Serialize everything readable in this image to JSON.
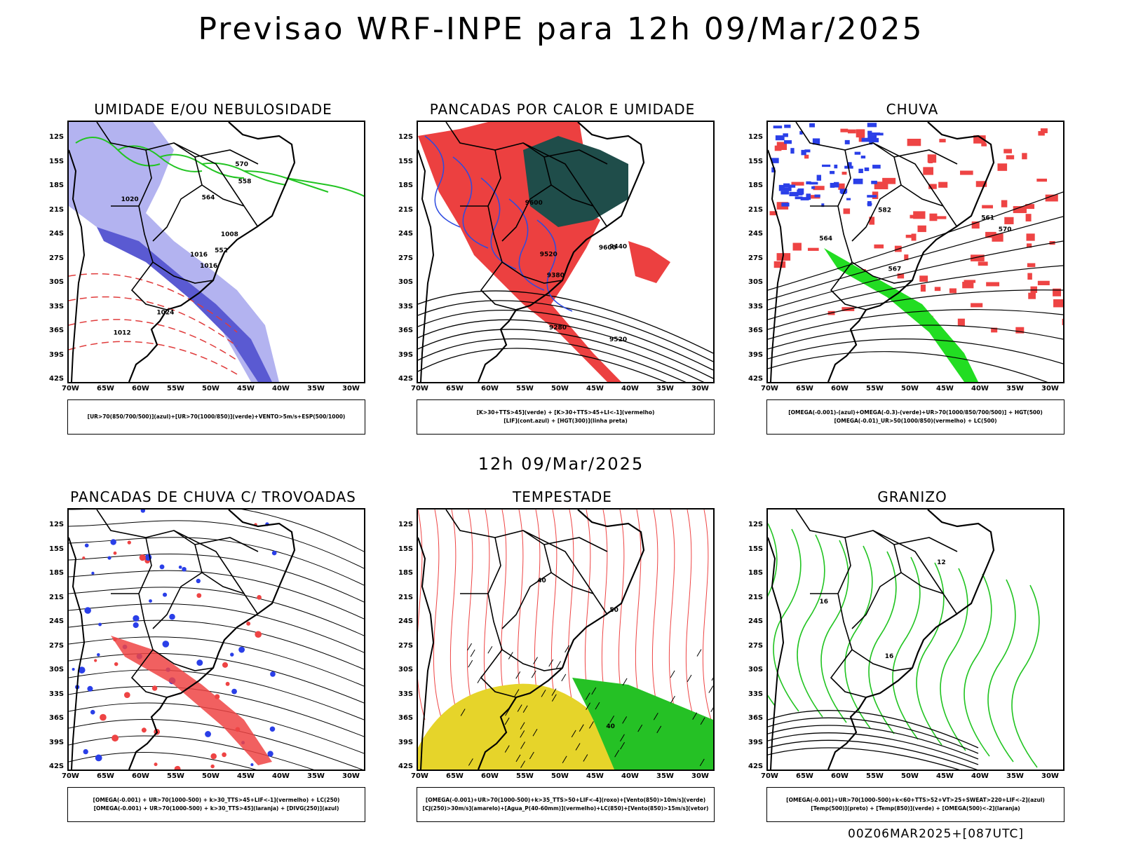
{
  "header": {
    "title": "Previsao WRF-INPE  para 12h 09/Mar/2025"
  },
  "mid_title": "12h 09/Mar/2025",
  "footer": "00Z06MAR2025+[087UTC]",
  "axes": {
    "lat_labels": [
      "12S",
      "15S",
      "18S",
      "21S",
      "24S",
      "27S",
      "30S",
      "33S",
      "36S",
      "39S",
      "42S"
    ],
    "lon_labels": [
      "70W",
      "65W",
      "60W",
      "55W",
      "50W",
      "45W",
      "40W",
      "35W",
      "30W"
    ]
  },
  "panels": [
    {
      "title": "UMIDADE E/OU NEBULOSIDADE",
      "legend": [
        "[UR>70(850/700/500)](azul)+[UR>70(1000/850)](verde)+VENTO>5m/s+ESP(500/1000)"
      ],
      "contour_labels": [
        "1016",
        "1020",
        "1016",
        "1012",
        "1008",
        "1024",
        "570",
        "564",
        "558",
        "552"
      ]
    },
    {
      "title": "PANCADAS POR CALOR E UMIDADE",
      "legend": [
        "[K>30+TTS>45](verde) + [K>30+TTS>45+LI<-1](vermelho)",
        "[LIF](cont.azul) + [HGT(300)](linha preta)"
      ],
      "contour_labels": [
        "9600",
        "9520",
        "9440",
        "9380",
        "9280",
        "9600",
        "9520"
      ]
    },
    {
      "title": "CHUVA",
      "legend": [
        "[OMEGA(-0.001)-(azul)+OMEGA(-0.3)-(verde)+UR>70(1000/850/700/500)] + HGT(500)",
        "[OMEGA(-0.01)_UR>50(1000/850)(vermelho) + LC(500)"
      ],
      "contour_labels": [
        "570",
        "567",
        "564",
        "561",
        "582"
      ]
    },
    {
      "title": "PANCADAS DE CHUVA C/ TROVOADAS",
      "legend": [
        "[OMEGA(-0.001) + UR>70(1000-500) + k>30_TTS>45+LIF<-1](vermelho) + LC(250)",
        "[OMEGA(-0.001) + UR>70(1000-500) + k>30_TTS>45](laranja) + [DIVG(250)](azul)"
      ],
      "contour_labels": []
    },
    {
      "title": "TEMPESTADE",
      "legend": [
        "[OMEGA(-0.001)+UR>70(1000-500)+k>35_TTS>50+LIF<-4](roxo)+[Vento(850)>10m/s](verde)",
        "[CJ(250)>30m/s](amarelo)+[Agua_P(40-60mm)](vermelho)+LC(850)+[Vento(850)>15m/s](vetor)"
      ],
      "contour_labels": [
        "40",
        "40",
        "50"
      ]
    },
    {
      "title": "GRANIZO",
      "legend": [
        "[OMEGA(-0.001)+UR>70(1000-500)+k<60+TTS>52+VT>25+SWEAT>220+LIF<-2](azul)",
        "[Temp(500)](preto) + [Temp(850)](verde) + [OMEGA(500)<-2](laranja)"
      ],
      "contour_labels": [
        "12",
        "16",
        "16"
      ]
    }
  ]
}
